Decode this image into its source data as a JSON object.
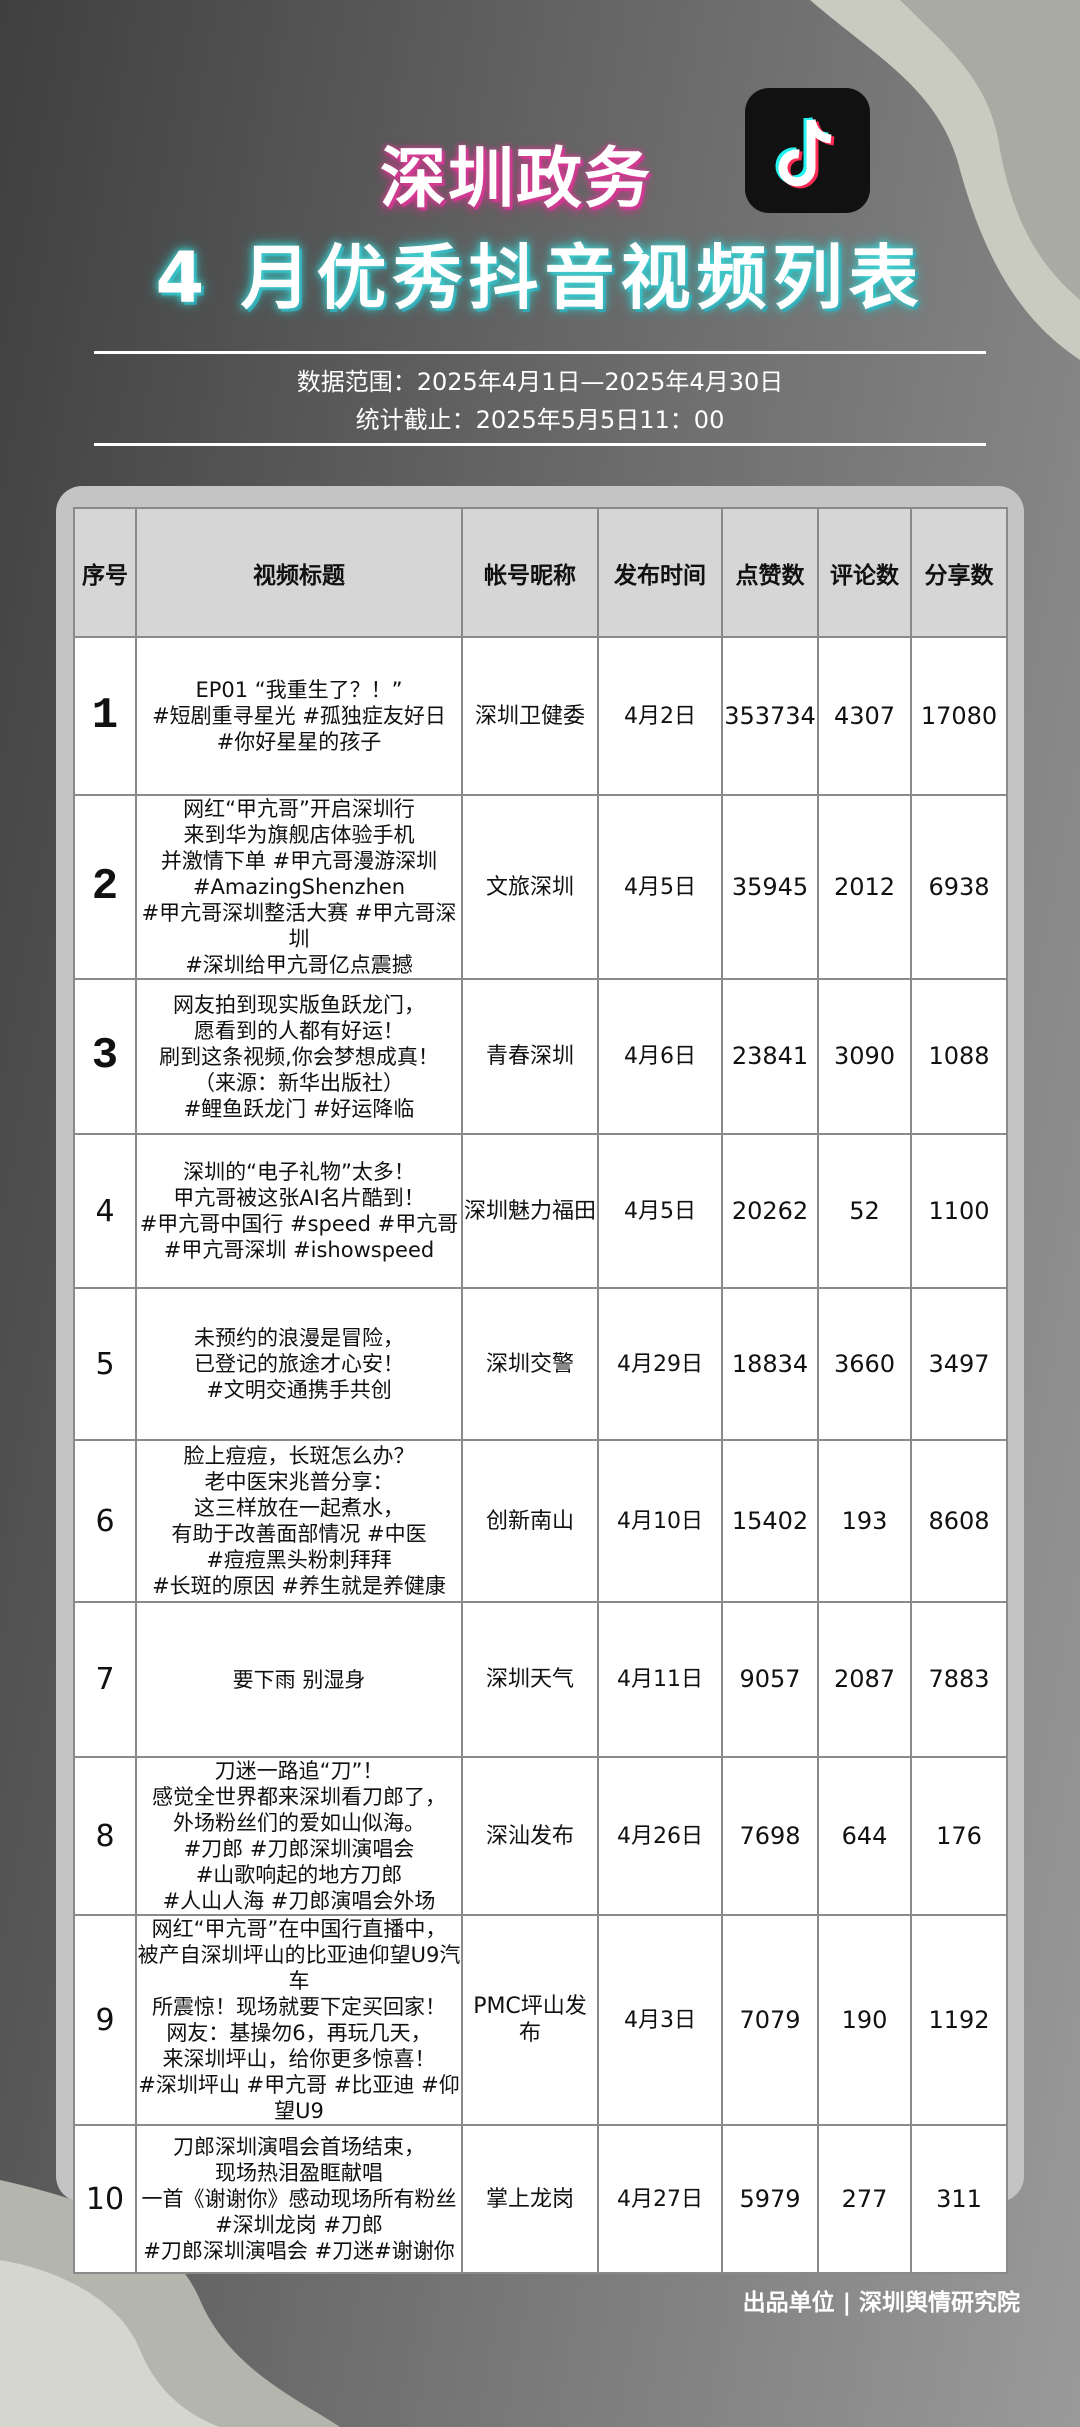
{
  "header": {
    "title_line1": "深圳政务",
    "title_line2": "4 月优秀抖音视频列表",
    "logo": "douyin-logo-icon",
    "date_range": "数据范围：2025年4月1日—2025年4月30日",
    "cutoff": "统计截止：2025年5月5日11：00"
  },
  "table": {
    "columns": [
      "序号",
      "视频标题",
      "帐号昵称",
      "发布时间",
      "点赞数",
      "评论数",
      "分享数"
    ],
    "rows": [
      {
        "rank": "1",
        "title": "EP01 “我重生了？！”\n#短剧重寻星光 #孤独症友好日\n#你好星星的孩子",
        "account": "深圳卫健委",
        "date": "4月2日",
        "likes": "353734",
        "comments": "4307",
        "shares": "17080"
      },
      {
        "rank": "2",
        "title": "网红“甲亢哥”开启深圳行\n来到华为旗舰店体验手机\n并激情下单 #甲亢哥漫游深圳\n#AmazingShenzhen\n#甲亢哥深圳整活大赛 #甲亢哥深圳\n#深圳给甲亢哥亿点震撼",
        "account": "文旅深圳",
        "date": "4月5日",
        "likes": "35945",
        "comments": "2012",
        "shares": "6938"
      },
      {
        "rank": "3",
        "title": "网友拍到现实版鱼跃龙门，\n愿看到的人都有好运！\n刷到这条视频,你会梦想成真！\n（来源：新华出版社）\n#鲤鱼跃龙门 #好运降临",
        "account": "青春深圳",
        "date": "4月6日",
        "likes": "23841",
        "comments": "3090",
        "shares": "1088"
      },
      {
        "rank": "4",
        "title": "深圳的“电子礼物”太多！\n甲亢哥被这张AI名片酷到！\n#甲亢哥中国行 #speed #甲亢哥\n#甲亢哥深圳  #ishowspeed",
        "account": "深圳魅力福田",
        "date": "4月5日",
        "likes": "20262",
        "comments": "52",
        "shares": "1100"
      },
      {
        "rank": "5",
        "title": "未预约的浪漫是冒险，\n已登记的旅途才心安！\n#文明交通携手共创",
        "account": "深圳交警",
        "date": "4月29日",
        "likes": "18834",
        "comments": "3660",
        "shares": "3497"
      },
      {
        "rank": "6",
        "title": "脸上痘痘，长斑怎么办？\n老中医宋兆普分享：\n这三样放在一起煮水，\n有助于改善面部情况 #中医\n#痘痘黑头粉刺拜拜\n#长斑的原因 #养生就是养健康",
        "account": "创新南山",
        "date": "4月10日",
        "likes": "15402",
        "comments": "193",
        "shares": "8608"
      },
      {
        "rank": "7",
        "title": "要下雨 别湿身",
        "account": "深圳天气",
        "date": "4月11日",
        "likes": "9057",
        "comments": "2087",
        "shares": "7883"
      },
      {
        "rank": "8",
        "title": "刀迷一路追“刀”！\n感觉全世界都来深圳看刀郎了，\n外场粉丝们的爱如山似海。\n#刀郎 #刀郎深圳演唱会\n#山歌响起的地方刀郎\n#人山人海 #刀郎演唱会外场",
        "account": "深汕发布",
        "date": "4月26日",
        "likes": "7698",
        "comments": "644",
        "shares": "176"
      },
      {
        "rank": "9",
        "title": "网红“甲亢哥”在中国行直播中，\n被产自深圳坪山的比亚迪仰望U9汽车\n所震惊！现场就要下定买回家！\n网友：基操勿6，再玩几天，\n来深圳坪山，给你更多惊喜！\n#深圳坪山 #甲亢哥 #比亚迪 #仰望U9",
        "account": "PMC坪山发布",
        "date": "4月3日",
        "likes": "7079",
        "comments": "190",
        "shares": "1192"
      },
      {
        "rank": "10",
        "title": "刀郎深圳演唱会首场结束，\n现场热泪盈眶献唱\n一首《谢谢你》感动现场所有粉丝\n#深圳龙岗 #刀郎\n#刀郎深圳演唱会 #刀迷#谢谢你",
        "account": "掌上龙岗",
        "date": "4月27日",
        "likes": "5979",
        "comments": "277",
        "shares": "311"
      }
    ]
  },
  "footer": {
    "producer": "出品单位 | 深圳舆情研究院"
  },
  "colors": {
    "pink_glow": "#e0409a",
    "cyan_glow": "#4fd6d6",
    "header_bg": "#d6d6d6"
  }
}
